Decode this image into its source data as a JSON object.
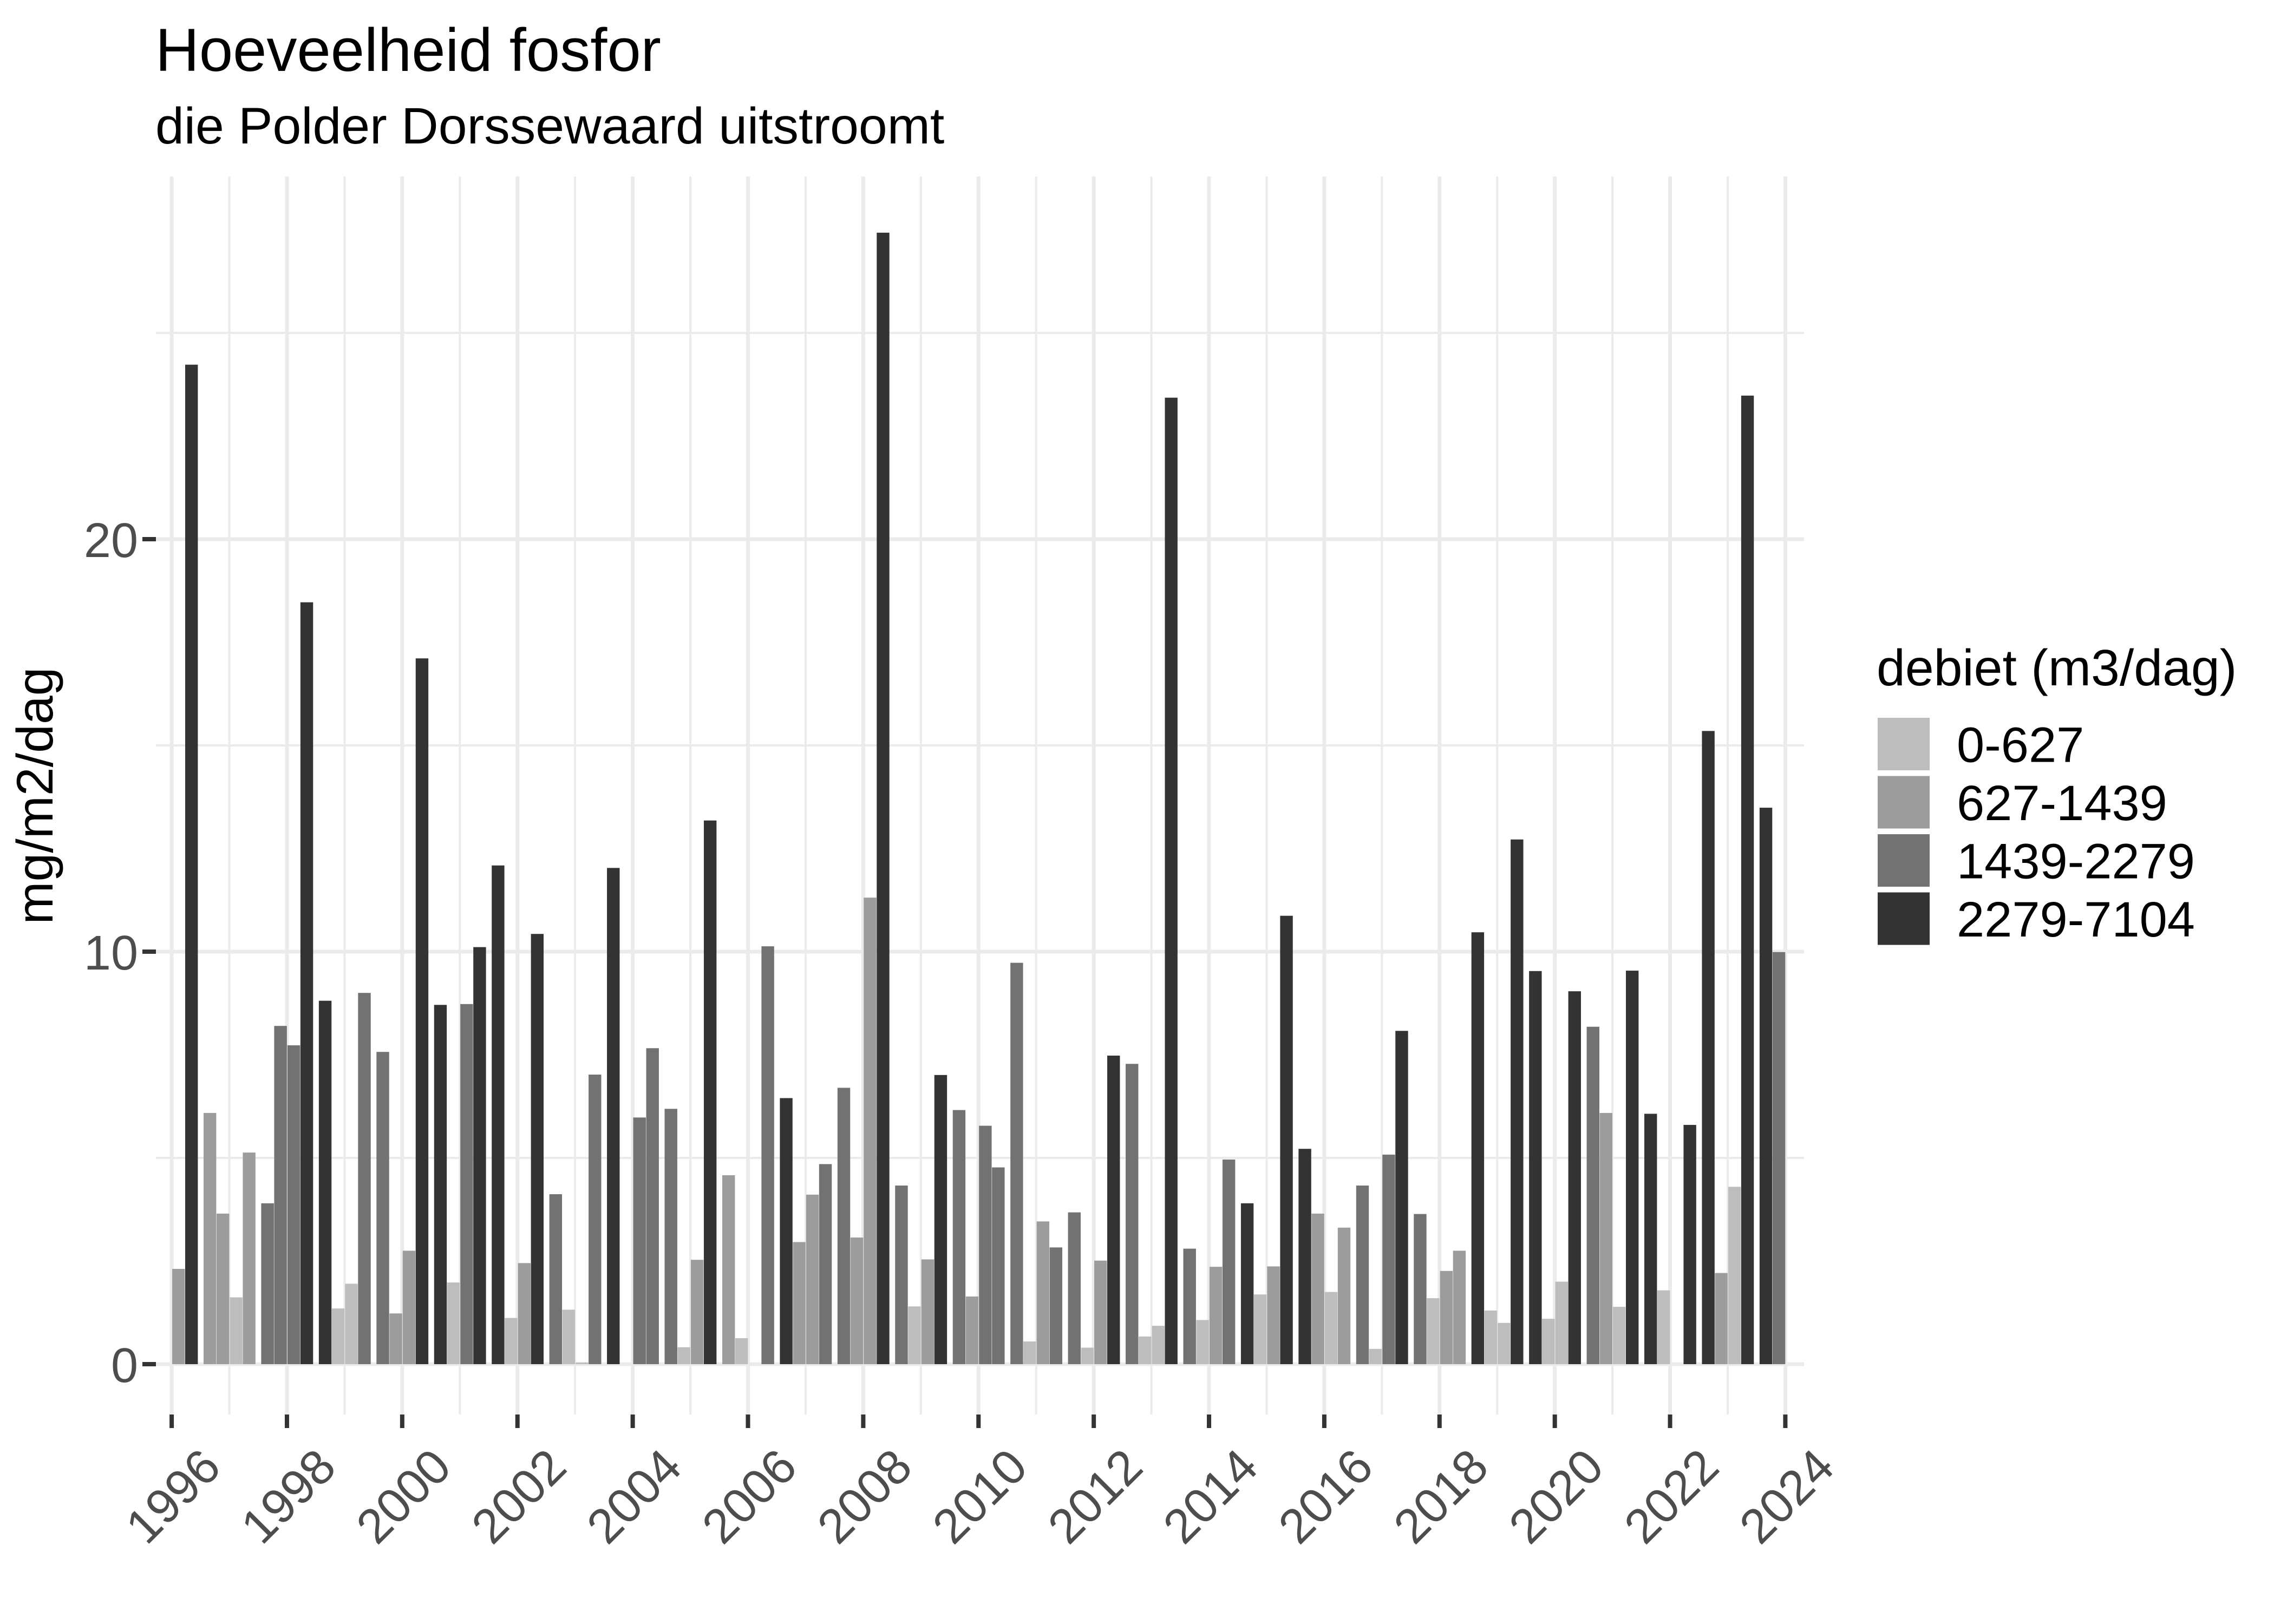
{
  "title": "Hoeveelheid fosfor",
  "subtitle": "die Polder Dorssewaard uitstroomt",
  "y_axis": {
    "title": "mg/m2/dag",
    "tick_labels": [
      "0",
      "10",
      "20"
    ],
    "tick_values": [
      0,
      10,
      20
    ],
    "minor_values": [
      5,
      15,
      25
    ]
  },
  "x_axis": {
    "tick_labels": [
      "1996",
      "1998",
      "2000",
      "2002",
      "2004",
      "2006",
      "2008",
      "2010",
      "2012",
      "2014",
      "2016",
      "2018",
      "2020",
      "2022",
      "2024"
    ],
    "tick_values": [
      1996,
      1998,
      2000,
      2002,
      2004,
      2006,
      2008,
      2010,
      2012,
      2014,
      2016,
      2018,
      2020,
      2022,
      2024
    ],
    "minor_values": [
      1997,
      1999,
      2001,
      2003,
      2005,
      2007,
      2009,
      2011,
      2013,
      2015,
      2017,
      2019,
      2021,
      2023
    ]
  },
  "legend": {
    "title": "debiet (m3/dag)",
    "entries": [
      {
        "label": "0-627",
        "color": "#bdbdbd"
      },
      {
        "label": "627-1439",
        "color": "#9c9c9c"
      },
      {
        "label": "1439-2279",
        "color": "#727272"
      },
      {
        "label": "2279-7104",
        "color": "#333333"
      }
    ]
  },
  "colors": {
    "background": "#ffffff",
    "gridline": "#ebebeb",
    "tick_mark": "#333333",
    "axis_text": "#4d4d4d",
    "cat1": "#bdbdbd",
    "cat2": "#9c9c9c",
    "cat3": "#727272",
    "cat4": "#333333"
  },
  "chart_data": {
    "type": "bar",
    "title": "Hoeveelheid fosfor",
    "subtitle": "die Polder Dorssewaard uitstroomt",
    "xlabel": "",
    "ylabel": "mg/m2/dag",
    "xlim": [
      1995.7,
      2024.3
    ],
    "ylim": [
      0,
      27.5
    ],
    "grid": true,
    "legend_position": "right",
    "legend_title": "debiet (m3/dag)",
    "categories": [
      "0-627",
      "627-1439",
      "1439-2279",
      "2279-7104"
    ],
    "x_unit": "year, 4 quarterly bars per year",
    "y_unit": "mg/m2/dag",
    "bars": [
      {
        "year": 1996,
        "q": 1,
        "value": 2.31,
        "cat": 2
      },
      {
        "year": 1996,
        "q": 2,
        "value": 24.23,
        "cat": 4
      },
      {
        "year": 1996,
        "q": 3,
        "value": 6.09,
        "cat": 2
      },
      {
        "year": 1996,
        "q": 4,
        "value": 3.65,
        "cat": 2
      },
      {
        "year": 1997,
        "q": 1,
        "value": 1.62,
        "cat": 1
      },
      {
        "year": 1997,
        "q": 2,
        "value": 5.13,
        "cat": 2
      },
      {
        "year": 1997,
        "q": 3,
        "value": 3.9,
        "cat": 3
      },
      {
        "year": 1997,
        "q": 4,
        "value": 8.2,
        "cat": 3
      },
      {
        "year": 1998,
        "q": 1,
        "value": 7.73,
        "cat": 3
      },
      {
        "year": 1998,
        "q": 2,
        "value": 18.47,
        "cat": 4
      },
      {
        "year": 1998,
        "q": 3,
        "value": 8.81,
        "cat": 4
      },
      {
        "year": 1998,
        "q": 4,
        "value": 1.35,
        "cat": 1
      },
      {
        "year": 1999,
        "q": 1,
        "value": 1.95,
        "cat": 1
      },
      {
        "year": 1999,
        "q": 2,
        "value": 9.0,
        "cat": 3
      },
      {
        "year": 1999,
        "q": 3,
        "value": 7.57,
        "cat": 3
      },
      {
        "year": 1999,
        "q": 4,
        "value": 1.23,
        "cat": 2
      },
      {
        "year": 2000,
        "q": 1,
        "value": 2.75,
        "cat": 2
      },
      {
        "year": 2000,
        "q": 2,
        "value": 17.11,
        "cat": 4
      },
      {
        "year": 2000,
        "q": 3,
        "value": 8.71,
        "cat": 4
      },
      {
        "year": 2000,
        "q": 4,
        "value": 1.98,
        "cat": 1
      },
      {
        "year": 2001,
        "q": 1,
        "value": 8.73,
        "cat": 3
      },
      {
        "year": 2001,
        "q": 2,
        "value": 10.11,
        "cat": 4
      },
      {
        "year": 2001,
        "q": 3,
        "value": 12.09,
        "cat": 4
      },
      {
        "year": 2001,
        "q": 4,
        "value": 1.12,
        "cat": 1
      },
      {
        "year": 2002,
        "q": 1,
        "value": 2.45,
        "cat": 2
      },
      {
        "year": 2002,
        "q": 2,
        "value": 10.43,
        "cat": 4
      },
      {
        "year": 2002,
        "q": 3,
        "value": 4.12,
        "cat": 3
      },
      {
        "year": 2002,
        "q": 4,
        "value": 1.32,
        "cat": 1
      },
      {
        "year": 2003,
        "q": 1,
        "value": 0.04,
        "cat": 1
      },
      {
        "year": 2003,
        "q": 2,
        "value": 7.02,
        "cat": 3
      },
      {
        "year": 2003,
        "q": 3,
        "value": 12.03,
        "cat": 4
      },
      {
        "year": 2004,
        "q": 1,
        "value": 5.98,
        "cat": 3
      },
      {
        "year": 2004,
        "q": 2,
        "value": 7.66,
        "cat": 3
      },
      {
        "year": 2004,
        "q": 3,
        "value": 6.19,
        "cat": 3
      },
      {
        "year": 2004,
        "q": 4,
        "value": 0.41,
        "cat": 1
      },
      {
        "year": 2005,
        "q": 1,
        "value": 2.53,
        "cat": 2
      },
      {
        "year": 2005,
        "q": 2,
        "value": 13.18,
        "cat": 4
      },
      {
        "year": 2005,
        "q": 3,
        "value": 4.58,
        "cat": 2
      },
      {
        "year": 2005,
        "q": 4,
        "value": 0.63,
        "cat": 1
      },
      {
        "year": 2006,
        "q": 2,
        "value": 10.13,
        "cat": 3
      },
      {
        "year": 2006,
        "q": 3,
        "value": 6.45,
        "cat": 4
      },
      {
        "year": 2006,
        "q": 4,
        "value": 2.96,
        "cat": 2
      },
      {
        "year": 2007,
        "q": 1,
        "value": 4.11,
        "cat": 2
      },
      {
        "year": 2007,
        "q": 2,
        "value": 4.85,
        "cat": 3
      },
      {
        "year": 2007,
        "q": 3,
        "value": 6.7,
        "cat": 3
      },
      {
        "year": 2007,
        "q": 4,
        "value": 3.07,
        "cat": 2
      },
      {
        "year": 2008,
        "q": 1,
        "value": 11.31,
        "cat": 2
      },
      {
        "year": 2008,
        "q": 2,
        "value": 27.43,
        "cat": 4
      },
      {
        "year": 2008,
        "q": 3,
        "value": 4.33,
        "cat": 3
      },
      {
        "year": 2008,
        "q": 4,
        "value": 1.4,
        "cat": 1
      },
      {
        "year": 2009,
        "q": 1,
        "value": 2.54,
        "cat": 2
      },
      {
        "year": 2009,
        "q": 2,
        "value": 7.01,
        "cat": 4
      },
      {
        "year": 2009,
        "q": 3,
        "value": 6.16,
        "cat": 3
      },
      {
        "year": 2009,
        "q": 4,
        "value": 1.64,
        "cat": 2
      },
      {
        "year": 2010,
        "q": 1,
        "value": 5.78,
        "cat": 3
      },
      {
        "year": 2010,
        "q": 2,
        "value": 4.77,
        "cat": 3
      },
      {
        "year": 2010,
        "q": 3,
        "value": 9.73,
        "cat": 3
      },
      {
        "year": 2010,
        "q": 4,
        "value": 0.55,
        "cat": 1
      },
      {
        "year": 2011,
        "q": 1,
        "value": 3.46,
        "cat": 2
      },
      {
        "year": 2011,
        "q": 2,
        "value": 2.83,
        "cat": 3
      },
      {
        "year": 2011,
        "q": 3,
        "value": 3.68,
        "cat": 3
      },
      {
        "year": 2011,
        "q": 4,
        "value": 0.4,
        "cat": 1
      },
      {
        "year": 2012,
        "q": 1,
        "value": 2.51,
        "cat": 2
      },
      {
        "year": 2012,
        "q": 2,
        "value": 7.48,
        "cat": 4
      },
      {
        "year": 2012,
        "q": 3,
        "value": 7.28,
        "cat": 3
      },
      {
        "year": 2012,
        "q": 4,
        "value": 0.67,
        "cat": 1
      },
      {
        "year": 2013,
        "q": 1,
        "value": 0.93,
        "cat": 1
      },
      {
        "year": 2013,
        "q": 2,
        "value": 23.43,
        "cat": 4
      },
      {
        "year": 2013,
        "q": 3,
        "value": 2.8,
        "cat": 3
      },
      {
        "year": 2013,
        "q": 4,
        "value": 1.07,
        "cat": 1
      },
      {
        "year": 2014,
        "q": 1,
        "value": 2.36,
        "cat": 2
      },
      {
        "year": 2014,
        "q": 2,
        "value": 4.96,
        "cat": 3
      },
      {
        "year": 2014,
        "q": 3,
        "value": 3.9,
        "cat": 4
      },
      {
        "year": 2014,
        "q": 4,
        "value": 1.69,
        "cat": 1
      },
      {
        "year": 2015,
        "q": 1,
        "value": 2.37,
        "cat": 2
      },
      {
        "year": 2015,
        "q": 2,
        "value": 10.87,
        "cat": 4
      },
      {
        "year": 2015,
        "q": 3,
        "value": 5.22,
        "cat": 4
      },
      {
        "year": 2015,
        "q": 4,
        "value": 3.65,
        "cat": 2
      },
      {
        "year": 2016,
        "q": 1,
        "value": 1.75,
        "cat": 1
      },
      {
        "year": 2016,
        "q": 2,
        "value": 3.31,
        "cat": 2
      },
      {
        "year": 2016,
        "q": 3,
        "value": 4.33,
        "cat": 3
      },
      {
        "year": 2016,
        "q": 4,
        "value": 0.37,
        "cat": 1
      },
      {
        "year": 2017,
        "q": 1,
        "value": 5.08,
        "cat": 3
      },
      {
        "year": 2017,
        "q": 2,
        "value": 8.08,
        "cat": 4
      },
      {
        "year": 2017,
        "q": 3,
        "value": 3.64,
        "cat": 3
      },
      {
        "year": 2017,
        "q": 4,
        "value": 1.6,
        "cat": 1
      },
      {
        "year": 2018,
        "q": 1,
        "value": 2.26,
        "cat": 2
      },
      {
        "year": 2018,
        "q": 2,
        "value": 2.75,
        "cat": 2
      },
      {
        "year": 2018,
        "q": 3,
        "value": 10.47,
        "cat": 4
      },
      {
        "year": 2018,
        "q": 4,
        "value": 1.3,
        "cat": 1
      },
      {
        "year": 2019,
        "q": 1,
        "value": 1.0,
        "cat": 1
      },
      {
        "year": 2019,
        "q": 2,
        "value": 12.72,
        "cat": 4
      },
      {
        "year": 2019,
        "q": 3,
        "value": 9.53,
        "cat": 4
      },
      {
        "year": 2019,
        "q": 4,
        "value": 1.1,
        "cat": 1
      },
      {
        "year": 2020,
        "q": 1,
        "value": 2.0,
        "cat": 1
      },
      {
        "year": 2020,
        "q": 2,
        "value": 9.04,
        "cat": 4
      },
      {
        "year": 2020,
        "q": 3,
        "value": 8.18,
        "cat": 3
      },
      {
        "year": 2020,
        "q": 4,
        "value": 6.09,
        "cat": 2
      },
      {
        "year": 2021,
        "q": 1,
        "value": 1.39,
        "cat": 1
      },
      {
        "year": 2021,
        "q": 2,
        "value": 9.54,
        "cat": 4
      },
      {
        "year": 2021,
        "q": 3,
        "value": 6.07,
        "cat": 4
      },
      {
        "year": 2021,
        "q": 4,
        "value": 1.79,
        "cat": 1
      },
      {
        "year": 2022,
        "q": 2,
        "value": 5.8,
        "cat": 4
      },
      {
        "year": 2022,
        "q": 3,
        "value": 15.35,
        "cat": 4
      },
      {
        "year": 2022,
        "q": 4,
        "value": 2.21,
        "cat": 2
      },
      {
        "year": 2023,
        "q": 1,
        "value": 4.3,
        "cat": 1
      },
      {
        "year": 2023,
        "q": 2,
        "value": 23.48,
        "cat": 4
      },
      {
        "year": 2023,
        "q": 3,
        "value": 13.49,
        "cat": 4
      },
      {
        "year": 2023,
        "q": 4,
        "value": 9.99,
        "cat": 3
      }
    ]
  }
}
